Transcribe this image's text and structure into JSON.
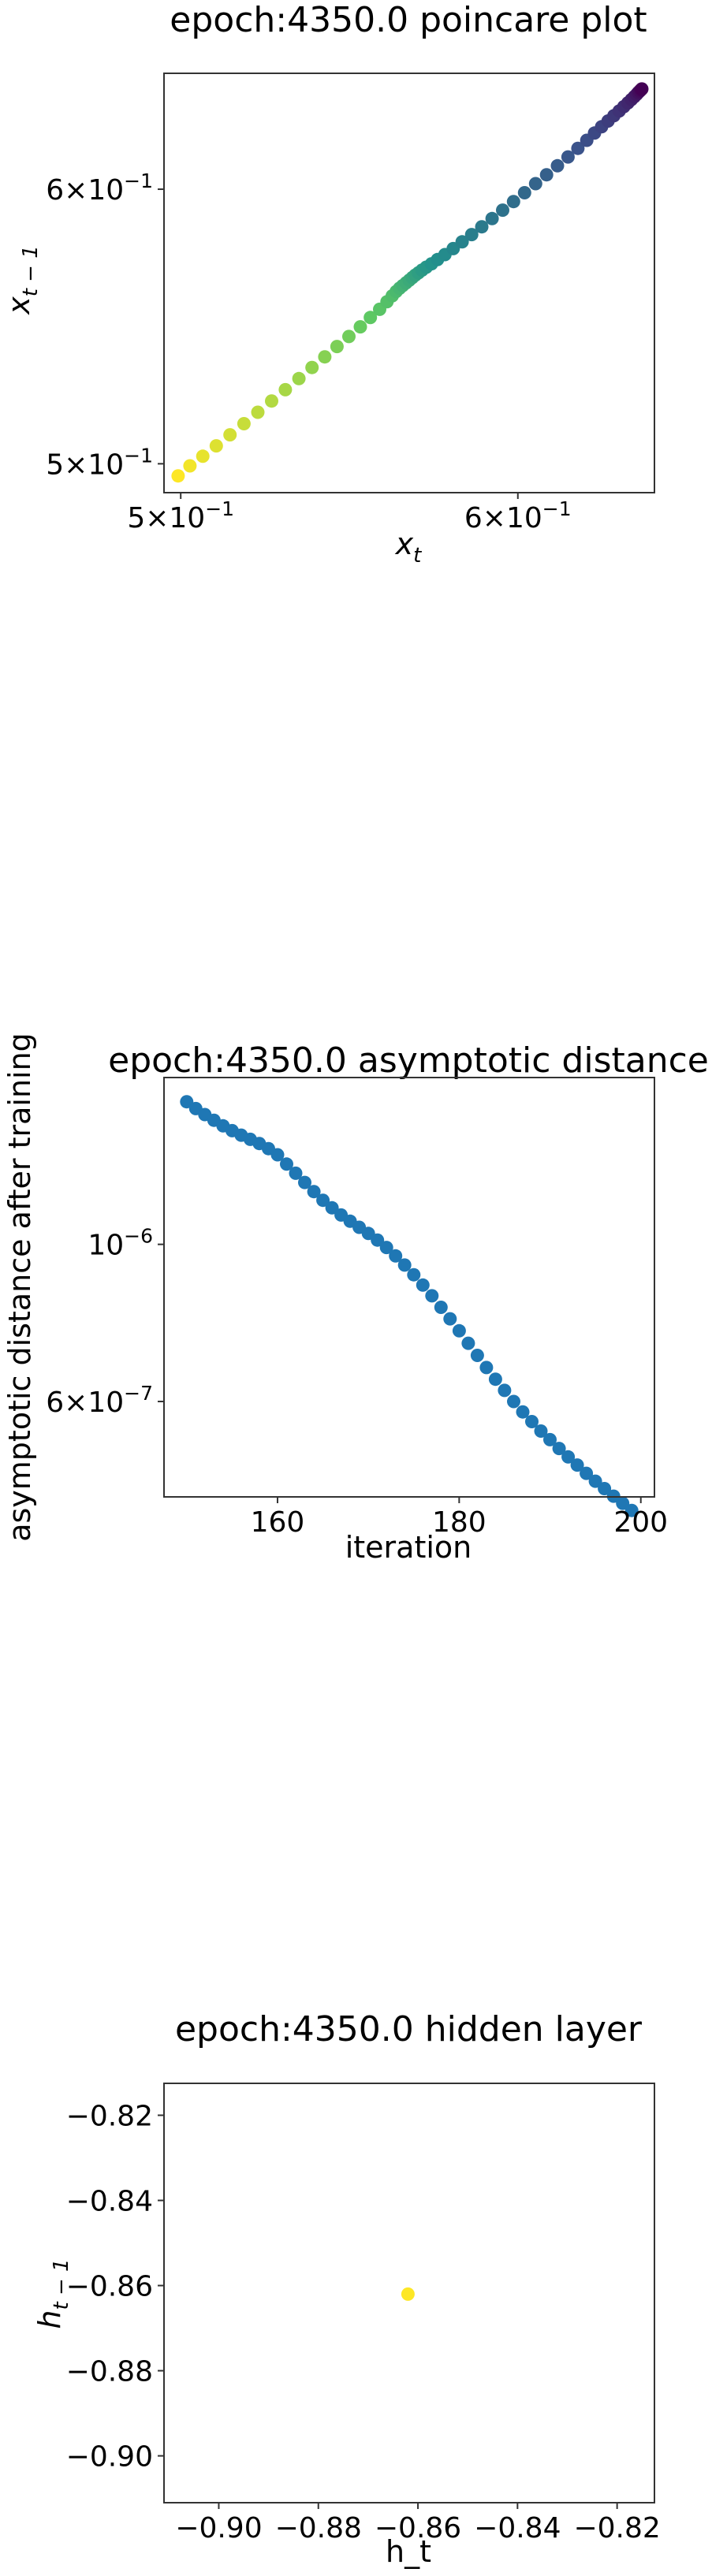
{
  "chart_data": [
    {
      "type": "scatter",
      "title": "epoch:4350.0 poincare plot",
      "xlabel": "x",
      "xlabel_sub": "t",
      "ylabel": "x",
      "ylabel_sub": "t − 1",
      "xscale": "log",
      "yscale": "log",
      "xlim": [
        0.4955,
        0.646
      ],
      "ylim": [
        0.4905,
        0.648
      ],
      "xticks": [
        {
          "value": 0.5,
          "base": "5×10",
          "exp": "−1"
        },
        {
          "value": 0.6,
          "base": "6×10",
          "exp": "−1"
        }
      ],
      "yticks": [
        {
          "value": 0.5,
          "base": "5×10",
          "exp": "−1"
        },
        {
          "value": 0.6,
          "base": "6×10",
          "exp": "−1"
        }
      ],
      "colormap": "viridis",
      "color_order": "late points dark purple, early points yellow",
      "x": [
        0.4993,
        0.5025,
        0.506,
        0.5097,
        0.5135,
        0.5174,
        0.5213,
        0.5252,
        0.5291,
        0.533,
        0.5368,
        0.5405,
        0.5441,
        0.5476,
        0.551,
        0.554,
        0.5568,
        0.559,
        0.5606,
        0.5618,
        0.5628,
        0.5638,
        0.5648,
        0.5658,
        0.5667,
        0.5676,
        0.5686,
        0.5697,
        0.571,
        0.5726,
        0.5745,
        0.5768,
        0.5794,
        0.5822,
        0.5852,
        0.5884,
        0.5917,
        0.5951,
        0.5986,
        0.6022,
        0.6058,
        0.6094,
        0.613,
        0.6165,
        0.6198,
        0.6228,
        0.6254,
        0.6278,
        0.63,
        0.632,
        0.6338,
        0.6354,
        0.6368,
        0.638,
        0.639,
        0.6398,
        0.6404,
        0.6409,
        0.6413,
        0.6416
      ],
      "y": [
        0.496,
        0.4993,
        0.5025,
        0.506,
        0.5097,
        0.5135,
        0.5174,
        0.5213,
        0.5252,
        0.5291,
        0.533,
        0.5368,
        0.5405,
        0.5441,
        0.5476,
        0.551,
        0.554,
        0.5568,
        0.559,
        0.5606,
        0.5618,
        0.5628,
        0.5638,
        0.5648,
        0.5658,
        0.5667,
        0.5676,
        0.5686,
        0.5697,
        0.571,
        0.5726,
        0.5745,
        0.5768,
        0.5794,
        0.5822,
        0.5852,
        0.5884,
        0.5917,
        0.5951,
        0.5986,
        0.6022,
        0.6058,
        0.6094,
        0.613,
        0.6165,
        0.6198,
        0.6228,
        0.6254,
        0.6278,
        0.63,
        0.632,
        0.6338,
        0.6354,
        0.6368,
        0.638,
        0.639,
        0.6398,
        0.6404,
        0.6409,
        0.6413
      ]
    },
    {
      "type": "scatter",
      "title": "epoch:4350.0 asymptotic distance",
      "xlabel": "iteration",
      "ylabel": "asymptotic distance after training",
      "xscale": "linear",
      "yscale": "log",
      "xlim": [
        147.5,
        201.5
      ],
      "ylim": [
        4.4e-07,
        1.72e-06
      ],
      "xticks": [
        {
          "value": 160,
          "label": "160"
        },
        {
          "value": 180,
          "label": "180"
        },
        {
          "value": 200,
          "label": "200"
        }
      ],
      "yticks": [
        {
          "value": 1e-06,
          "base": "10",
          "exp": "−6"
        },
        {
          "value": 6e-07,
          "base": "6×10",
          "exp": "−7"
        }
      ],
      "color": "#1f77b4",
      "x": [
        150,
        151,
        152,
        153,
        154,
        155,
        156,
        157,
        158,
        159,
        160,
        161,
        162,
        163,
        164,
        165,
        166,
        167,
        168,
        169,
        170,
        171,
        172,
        173,
        174,
        175,
        176,
        177,
        178,
        179,
        180,
        181,
        182,
        183,
        184,
        185,
        186,
        187,
        188,
        189,
        190,
        191,
        192,
        193,
        194,
        195,
        196,
        197,
        198,
        199
      ],
      "y": [
        1.59e-06,
        1.555e-06,
        1.525e-06,
        1.497e-06,
        1.47e-06,
        1.447e-06,
        1.426e-06,
        1.407e-06,
        1.388e-06,
        1.365e-06,
        1.338e-06,
        1.298e-06,
        1.26e-06,
        1.223e-06,
        1.187e-06,
        1.154e-06,
        1.126e-06,
        1.1e-06,
        1.078e-06,
        1.057e-06,
        1.036e-06,
        1.014e-06,
        9.9e-07,
        9.63e-07,
        9.35e-07,
        9.06e-07,
        8.76e-07,
        8.46e-07,
        8.15e-07,
        7.85e-07,
        7.55e-07,
        7.25e-07,
        6.97e-07,
        6.7e-07,
        6.45e-07,
        6.22e-07,
        6e-07,
        5.8e-07,
        5.62e-07,
        5.45e-07,
        5.3e-07,
        5.15e-07,
        5.01e-07,
        4.88e-07,
        4.75e-07,
        4.63e-07,
        4.52e-07,
        4.41e-07,
        4.31e-07,
        4.21e-07
      ]
    },
    {
      "type": "scatter",
      "title": "epoch:4350.0 hidden layer",
      "xlabel": "h_t",
      "ylabel": "h",
      "ylabel_sub": "t − 1",
      "xscale": "linear",
      "yscale": "linear",
      "xlim": [
        -0.911,
        -0.8125
      ],
      "ylim": [
        -0.911,
        -0.8125
      ],
      "xticks": [
        {
          "value": -0.9,
          "label": "−0.90"
        },
        {
          "value": -0.88,
          "label": "−0.88"
        },
        {
          "value": -0.86,
          "label": "−0.86"
        },
        {
          "value": -0.84,
          "label": "−0.84"
        },
        {
          "value": -0.82,
          "label": "−0.82"
        }
      ],
      "yticks": [
        {
          "value": -0.82,
          "label": "−0.82"
        },
        {
          "value": -0.84,
          "label": "−0.84"
        },
        {
          "value": -0.86,
          "label": "−0.86"
        },
        {
          "value": -0.88,
          "label": "−0.88"
        },
        {
          "value": -0.9,
          "label": "−0.90"
        }
      ],
      "color": "#fde725",
      "x": [
        -0.862
      ],
      "y": [
        -0.862
      ]
    }
  ]
}
